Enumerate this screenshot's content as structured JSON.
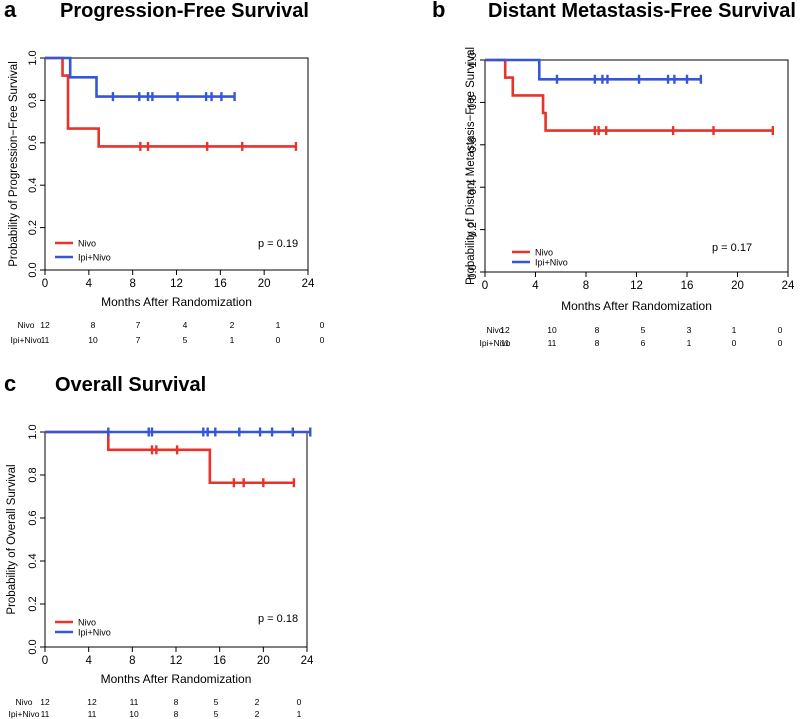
{
  "colors": {
    "nivo": "#e8322a",
    "ipinivo": "#3556d8",
    "axis": "#000000"
  },
  "chart_data": [
    {
      "type": "line",
      "panel_letter": "a",
      "title": "Progression-Free Survival",
      "xlabel": "Months After Randomization",
      "ylabel": "Probability of Progression−Free Survival",
      "xlim": [
        0,
        24
      ],
      "ylim": [
        0,
        1
      ],
      "xticks": [
        0,
        4,
        8,
        12,
        16,
        20,
        24
      ],
      "yticks": [
        "0.0",
        "0.2",
        "0.4",
        "0.6",
        "0.8",
        "1.0"
      ],
      "legend": [
        "Nivo",
        "Ipi+Nivo"
      ],
      "legend_position": "bottom-left",
      "pvalue": "p = 0.19",
      "series": [
        {
          "name": "Nivo",
          "color": "nivo",
          "steps": [
            [
              0,
              1.0
            ],
            [
              1.6,
              0.917
            ],
            [
              2.1,
              0.667
            ],
            [
              4.9,
              0.583
            ],
            [
              22.9,
              0.583
            ]
          ],
          "censor": [
            8.7,
            9.4,
            14.8,
            18.0,
            22.9
          ]
        },
        {
          "name": "Ipi+Nivo",
          "color": "ipinivo",
          "steps": [
            [
              0,
              1.0
            ],
            [
              2.3,
              0.909
            ],
            [
              4.7,
              0.818
            ],
            [
              17.3,
              0.818
            ]
          ],
          "censor": [
            6.2,
            8.6,
            9.4,
            9.8,
            12.1,
            14.7,
            15.2,
            16.1,
            17.3
          ]
        }
      ],
      "risk_table": {
        "times": [
          "0",
          "4",
          "8",
          "12",
          "16",
          "20",
          "24"
        ],
        "rows": [
          {
            "label": "Nivo",
            "values": [
              "12",
              "8",
              "7",
              "4",
              "2",
              "1",
              "0"
            ]
          },
          {
            "label": "Ipi+Nivo",
            "values": [
              "11",
              "10",
              "7",
              "5",
              "1",
              "0",
              "0"
            ]
          }
        ]
      }
    },
    {
      "type": "line",
      "panel_letter": "b",
      "title": "Distant Metastasis-Free Survival",
      "xlabel": "Months After Randomization",
      "ylabel": "Probability of Distant Metastasis−Free Survival",
      "xlim": [
        0,
        24
      ],
      "ylim": [
        0,
        1
      ],
      "xticks": [
        0,
        4,
        8,
        12,
        16,
        20,
        24
      ],
      "yticks": [
        "0.0",
        "0.2",
        "0.4",
        "0.6",
        "0.8",
        "1.0"
      ],
      "legend": [
        "Nivo",
        "Ipi+Nivo"
      ],
      "legend_position": "bottom-left",
      "pvalue": "p = 0.17",
      "series": [
        {
          "name": "Nivo",
          "color": "nivo",
          "steps": [
            [
              0,
              1.0
            ],
            [
              1.6,
              0.917
            ],
            [
              2.2,
              0.833
            ],
            [
              4.6,
              0.75
            ],
            [
              4.8,
              0.667
            ],
            [
              22.8,
              0.667
            ]
          ],
          "censor": [
            8.7,
            9.0,
            9.6,
            14.9,
            18.1,
            22.8
          ]
        },
        {
          "name": "Ipi+Nivo",
          "color": "ipinivo",
          "steps": [
            [
              0,
              1.0
            ],
            [
              4.3,
              0.909
            ],
            [
              17.1,
              0.909
            ]
          ],
          "censor": [
            5.7,
            8.7,
            9.3,
            9.7,
            12.2,
            14.5,
            15.0,
            16.0,
            17.1
          ]
        }
      ],
      "risk_table": {
        "times": [
          "0",
          "4",
          "8",
          "12",
          "16",
          "20",
          "24"
        ],
        "rows": [
          {
            "label": "Nivo",
            "values": [
              "12",
              "10",
              "8",
              "5",
              "3",
              "1",
              "0"
            ]
          },
          {
            "label": "Ipi+Nivo",
            "values": [
              "11",
              "11",
              "8",
              "6",
              "1",
              "0",
              "0"
            ]
          }
        ]
      }
    },
    {
      "type": "line",
      "panel_letter": "c",
      "title": "Overall Survival",
      "xlabel": "Months After Randomization",
      "ylabel": "Probability of Overall Survival",
      "xlim": [
        0,
        24
      ],
      "ylim": [
        0,
        1
      ],
      "xticks": [
        0,
        4,
        8,
        12,
        16,
        20,
        24
      ],
      "yticks": [
        "0.0",
        "0.2",
        "0.4",
        "0.6",
        "0.8",
        "1.0"
      ],
      "legend": [
        "Nivo",
        "Ipi+Nivo"
      ],
      "legend_position": "bottom-left",
      "pvalue": "p = 0.18",
      "series": [
        {
          "name": "Nivo",
          "color": "nivo",
          "steps": [
            [
              0,
              1.0
            ],
            [
              5.8,
              0.917
            ],
            [
              15.1,
              0.764
            ],
            [
              22.8,
              0.764
            ]
          ],
          "censor": [
            9.8,
            10.2,
            12.1,
            17.3,
            18.2,
            20.0,
            22.8
          ]
        },
        {
          "name": "Ipi+Nivo",
          "color": "ipinivo",
          "steps": [
            [
              0,
              1.0
            ],
            [
              24.3,
              1.0
            ]
          ],
          "censor": [
            5.8,
            9.5,
            9.8,
            14.5,
            14.9,
            15.6,
            17.8,
            19.7,
            20.8,
            22.7,
            24.3
          ]
        }
      ],
      "risk_table": {
        "times": [
          "0",
          "4",
          "8",
          "12",
          "16",
          "20",
          "24"
        ],
        "rows": [
          {
            "label": "Nivo",
            "values": [
              "12",
              "12",
              "11",
              "8",
              "5",
              "2",
              "0"
            ]
          },
          {
            "label": "Ipi+Nivo",
            "values": [
              "11",
              "11",
              "10",
              "8",
              "5",
              "2",
              "1"
            ]
          }
        ]
      }
    }
  ]
}
